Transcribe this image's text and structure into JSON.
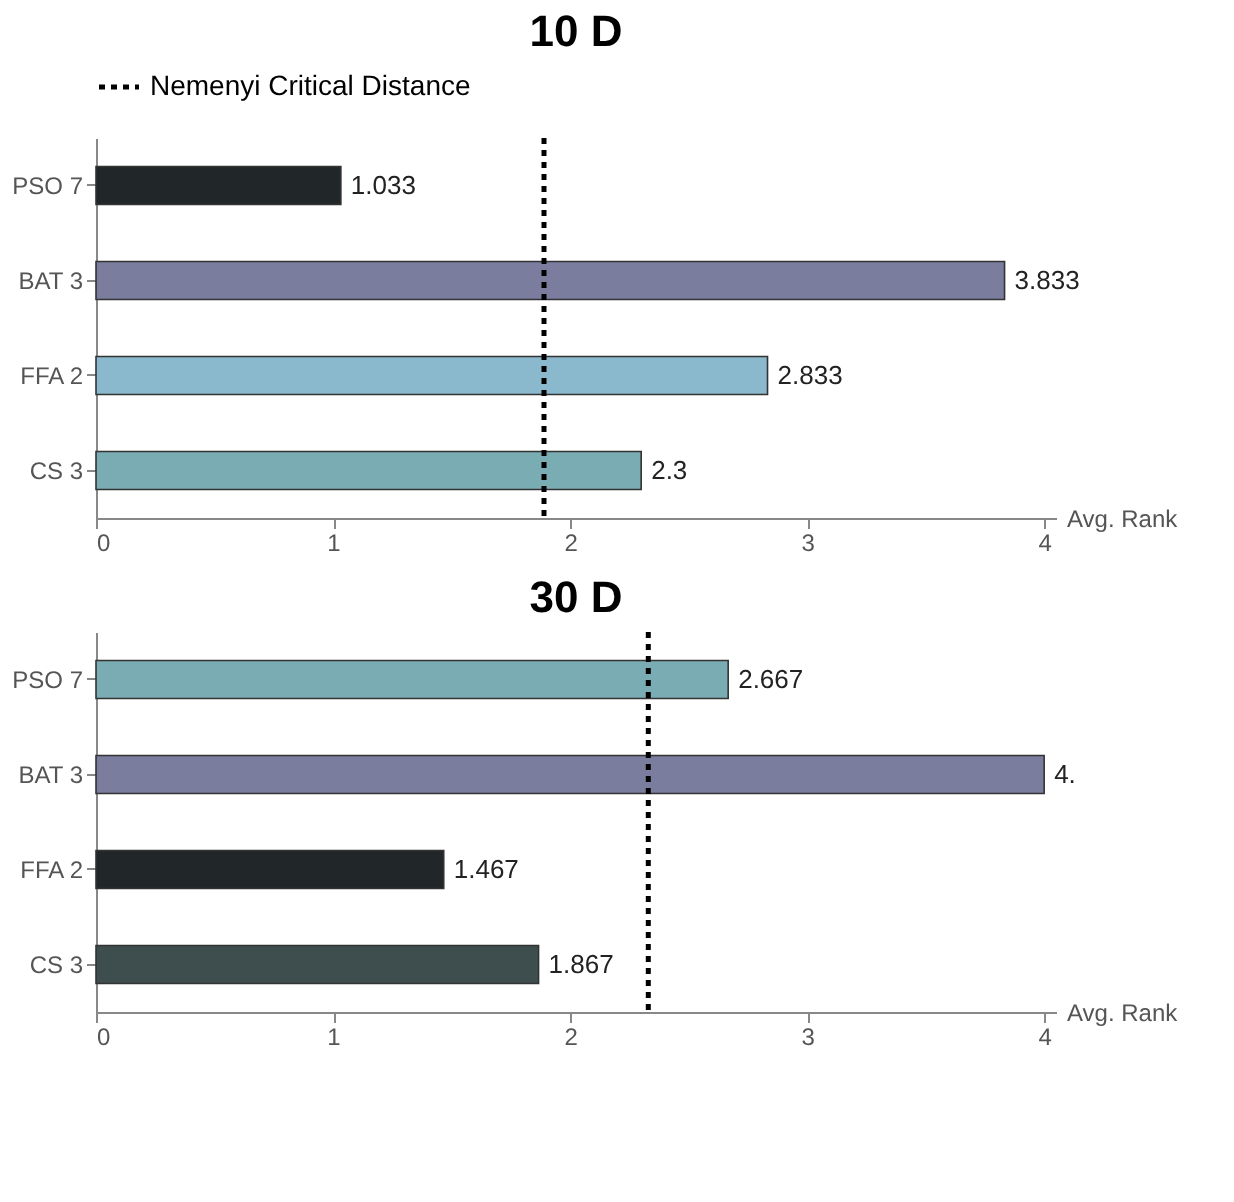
{
  "chart_data": [
    {
      "type": "bar",
      "orientation": "horizontal",
      "title": "10 D",
      "xlabel": "Avg. Rank",
      "categories": [
        "PSO 7",
        "BAT 3",
        "FFA 2",
        "CS 3"
      ],
      "values": [
        1.033,
        3.833,
        2.833,
        2.3
      ],
      "colors": [
        "#212729",
        "#7a7d9e",
        "#8ab8cc",
        "#7aacb4"
      ],
      "data_labels": true,
      "xlim": [
        0,
        4.05
      ],
      "xticks": [
        0,
        1,
        2,
        3,
        4
      ],
      "grid": false,
      "legend": "top",
      "ref_lines": [
        {
          "axis": "x",
          "value": 1.89,
          "label": "Nemenyi Critical Distance",
          "color": "#000000",
          "line_style": "dotted"
        }
      ]
    },
    {
      "type": "bar",
      "orientation": "horizontal",
      "title": "30 D",
      "xlabel": "Avg. Rank",
      "categories": [
        "PSO 7",
        "BAT 3",
        "FFA 2",
        "CS 3"
      ],
      "values": [
        2.667,
        4,
        1.467,
        1.867
      ],
      "value_labels": [
        "2.667",
        "4.",
        "1.467",
        "1.867"
      ],
      "colors": [
        "#7aacb4",
        "#7a7d9e",
        "#212729",
        "#3e4e4e"
      ],
      "xlim": [
        0,
        4.05
      ],
      "xticks": [
        0,
        1,
        2,
        3,
        4
      ],
      "grid": false,
      "ref_lines": [
        {
          "axis": "x",
          "value": 2.33,
          "color": "#000000",
          "line_style": "dotted"
        }
      ]
    }
  ]
}
